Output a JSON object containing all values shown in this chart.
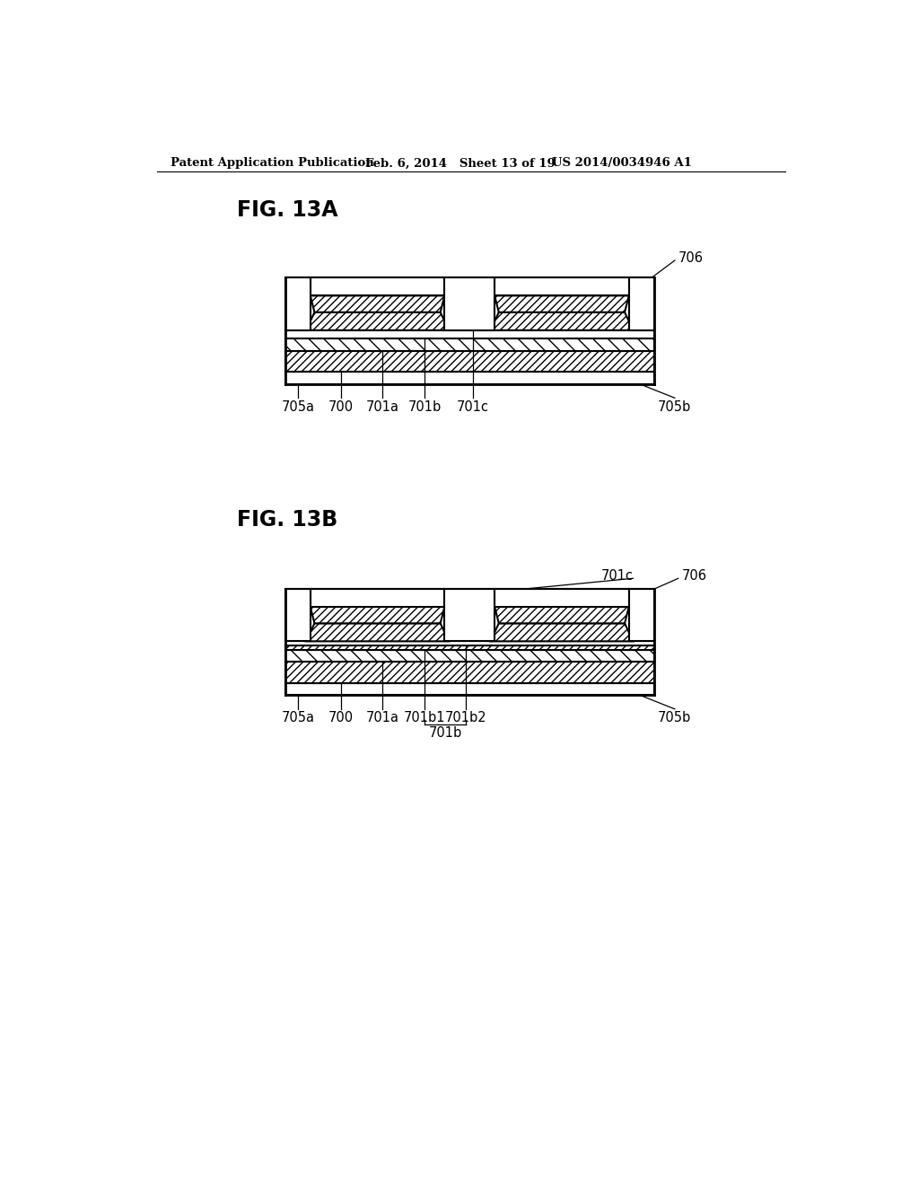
{
  "header_left": "Patent Application Publication",
  "header_mid": "Feb. 6, 2014   Sheet 13 of 19",
  "header_right": "US 2014/0034946 A1",
  "fig_a_label": "FIG. 13A",
  "fig_b_label": "FIG. 13B",
  "background_color": "#ffffff"
}
